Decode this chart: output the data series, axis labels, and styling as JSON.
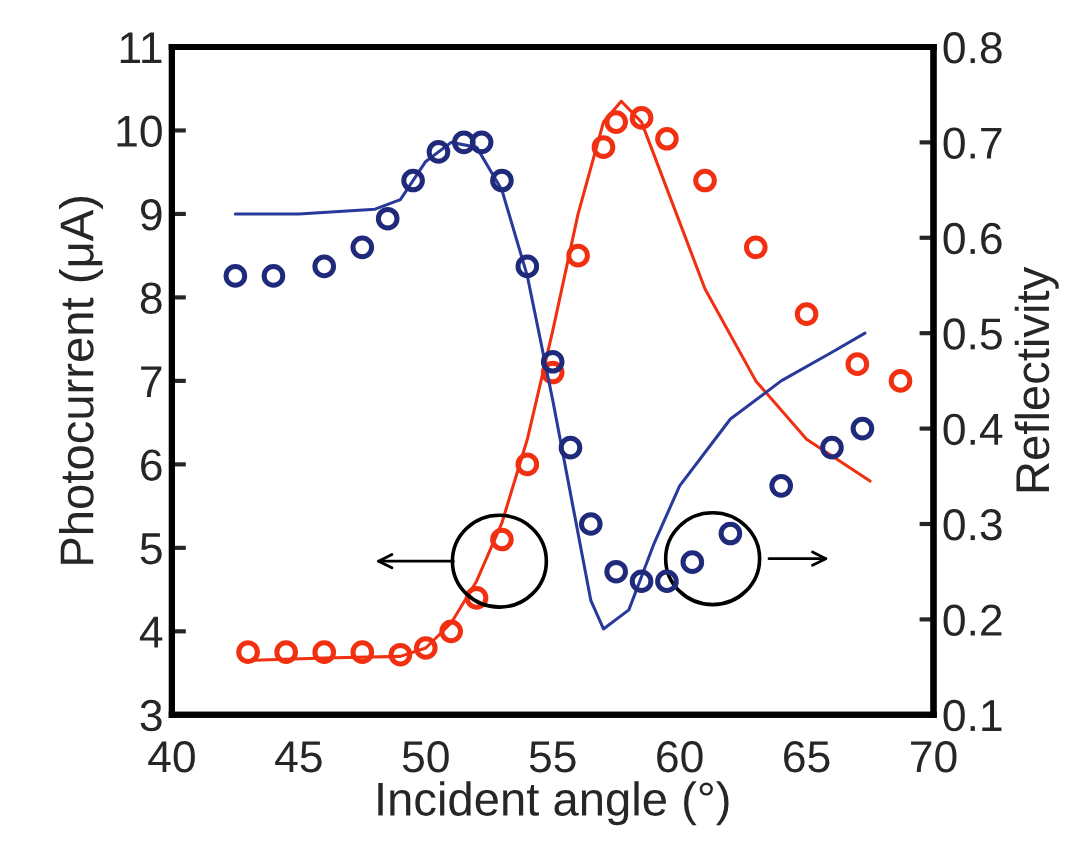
{
  "chart_data": {
    "type": "scatter",
    "xlabel": "Incident angle (°)",
    "ylabel": "Photocurrent (μA)",
    "y2label": "Reflectivity",
    "xlim": [
      40,
      70
    ],
    "xticks": [
      40,
      45,
      50,
      55,
      60,
      65,
      70
    ],
    "ylim": [
      3,
      11
    ],
    "yticks": [
      3,
      4,
      5,
      6,
      7,
      8,
      9,
      10,
      11
    ],
    "y2lim": [
      0.1,
      0.8
    ],
    "y2ticks": [
      0.1,
      0.2,
      0.3,
      0.4,
      0.5,
      0.6,
      0.7,
      0.8
    ],
    "grid": false,
    "series": [
      {
        "marker": "circle",
        "color": "#1f2a7a",
        "axis": "y2",
        "x": [
          42.5,
          44,
          46,
          47.5,
          48.5,
          49.5,
          50.5,
          51.5,
          52.2,
          53,
          54,
          55,
          55.7,
          56.5,
          57.5,
          58.5,
          59.5,
          60.5,
          62,
          64,
          66,
          67.2
        ],
        "values": [
          0.56,
          0.56,
          0.57,
          0.59,
          0.62,
          0.66,
          0.69,
          0.7,
          0.7,
          0.66,
          0.57,
          0.47,
          0.38,
          0.3,
          0.25,
          0.24,
          0.24,
          0.26,
          0.29,
          0.34,
          0.38,
          0.4
        ]
      },
      {
        "type": "line",
        "marker": "none",
        "line_style": "solid",
        "color": "#2a3a9a",
        "axis": "y2",
        "x": [
          42.5,
          45,
          48,
          49,
          50,
          51,
          52,
          53,
          54,
          55,
          56,
          56.5,
          57,
          58,
          59,
          60,
          62,
          64,
          66,
          67.3
        ],
        "values": [
          0.625,
          0.625,
          0.63,
          0.64,
          0.68,
          0.7,
          0.695,
          0.65,
          0.56,
          0.43,
          0.29,
          0.22,
          0.19,
          0.21,
          0.28,
          0.34,
          0.41,
          0.45,
          0.48,
          0.5
        ]
      },
      {
        "marker": "circle",
        "color": "#f03010",
        "x": [
          43,
          44.5,
          46,
          47.5,
          49,
          50,
          51,
          52,
          53,
          54,
          55,
          56,
          57,
          57.5,
          58.5,
          59.5,
          61,
          63,
          65,
          67,
          68.7
        ],
        "values": [
          3.75,
          3.75,
          3.75,
          3.75,
          3.72,
          3.8,
          4.0,
          4.4,
          5.1,
          6.0,
          7.1,
          8.5,
          9.8,
          10.1,
          10.15,
          9.9,
          9.4,
          8.6,
          7.8,
          7.2,
          7.0
        ]
      },
      {
        "type": "line",
        "marker": "none",
        "line_style": "solid",
        "color": "#f03010",
        "x": [
          43,
          46,
          49,
          50,
          51,
          52,
          53,
          54,
          55,
          56,
          57,
          57.7,
          58.5,
          59.5,
          61,
          63,
          65,
          67.5
        ],
        "values": [
          3.65,
          3.68,
          3.7,
          3.8,
          4.1,
          4.6,
          5.3,
          6.3,
          7.6,
          9.0,
          10.1,
          10.35,
          10.1,
          9.3,
          8.1,
          7.0,
          6.3,
          5.8
        ]
      }
    ]
  }
}
